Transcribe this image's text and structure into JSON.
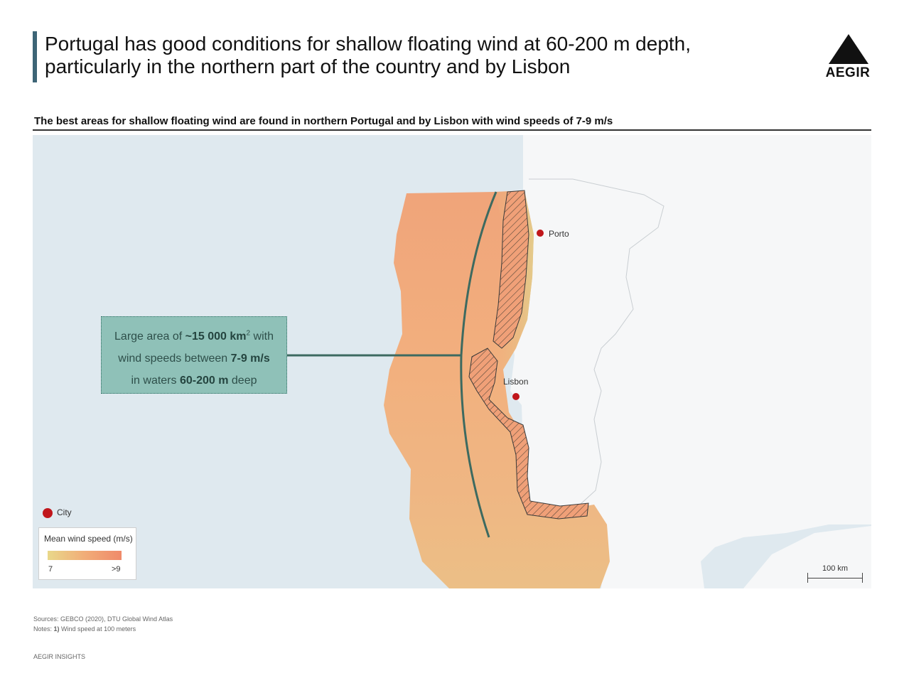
{
  "header": {
    "title_line1": "Portugal has good conditions for shallow floating wind at 60-200 m depth,",
    "title_line2": "particularly in the northern part of the country and by Lisbon",
    "logo_text": "AEGIR"
  },
  "subtitle": "The best areas for shallow floating wind are found in northern Portugal and by Lisbon with wind speeds of 7-9 m/s",
  "map": {
    "cities": [
      {
        "name": "Porto"
      },
      {
        "name": "Lisbon"
      }
    ],
    "callout": {
      "line1_prefix": "Large area of ",
      "line1_value": "~15 000 km",
      "line1_sup": "2",
      "line1_suffix": " with",
      "line2_prefix": "wind speeds between ",
      "line2_value": "7-9 m/s",
      "line3_prefix": "in waters ",
      "line3_value": "60-200 m",
      "line3_suffix": " deep"
    },
    "legend": {
      "city_label": "City",
      "title": "Mean wind speed (m/s)",
      "min_label": "7",
      "max_label": ">9",
      "gradient_colors": [
        "#e9d88a",
        "#f1ad78",
        "#f08a6a"
      ]
    },
    "scale_label": "100 km",
    "colors": {
      "sea": "#dfe9ef",
      "land": "#f6f7f8",
      "wind_high": "#f0a878",
      "wind_low": "#e4d090",
      "accent_line": "#3d6a60",
      "city_dot": "#c0161b"
    }
  },
  "footer": {
    "sources": "Sources: GEBCO (2020), DTU Global Wind Atlas",
    "notes_prefix": "Notes: ",
    "notes_bold": "1)",
    "notes_text": " Wind speed at 100 meters",
    "brand": "AEGIR INSIGHTS"
  }
}
